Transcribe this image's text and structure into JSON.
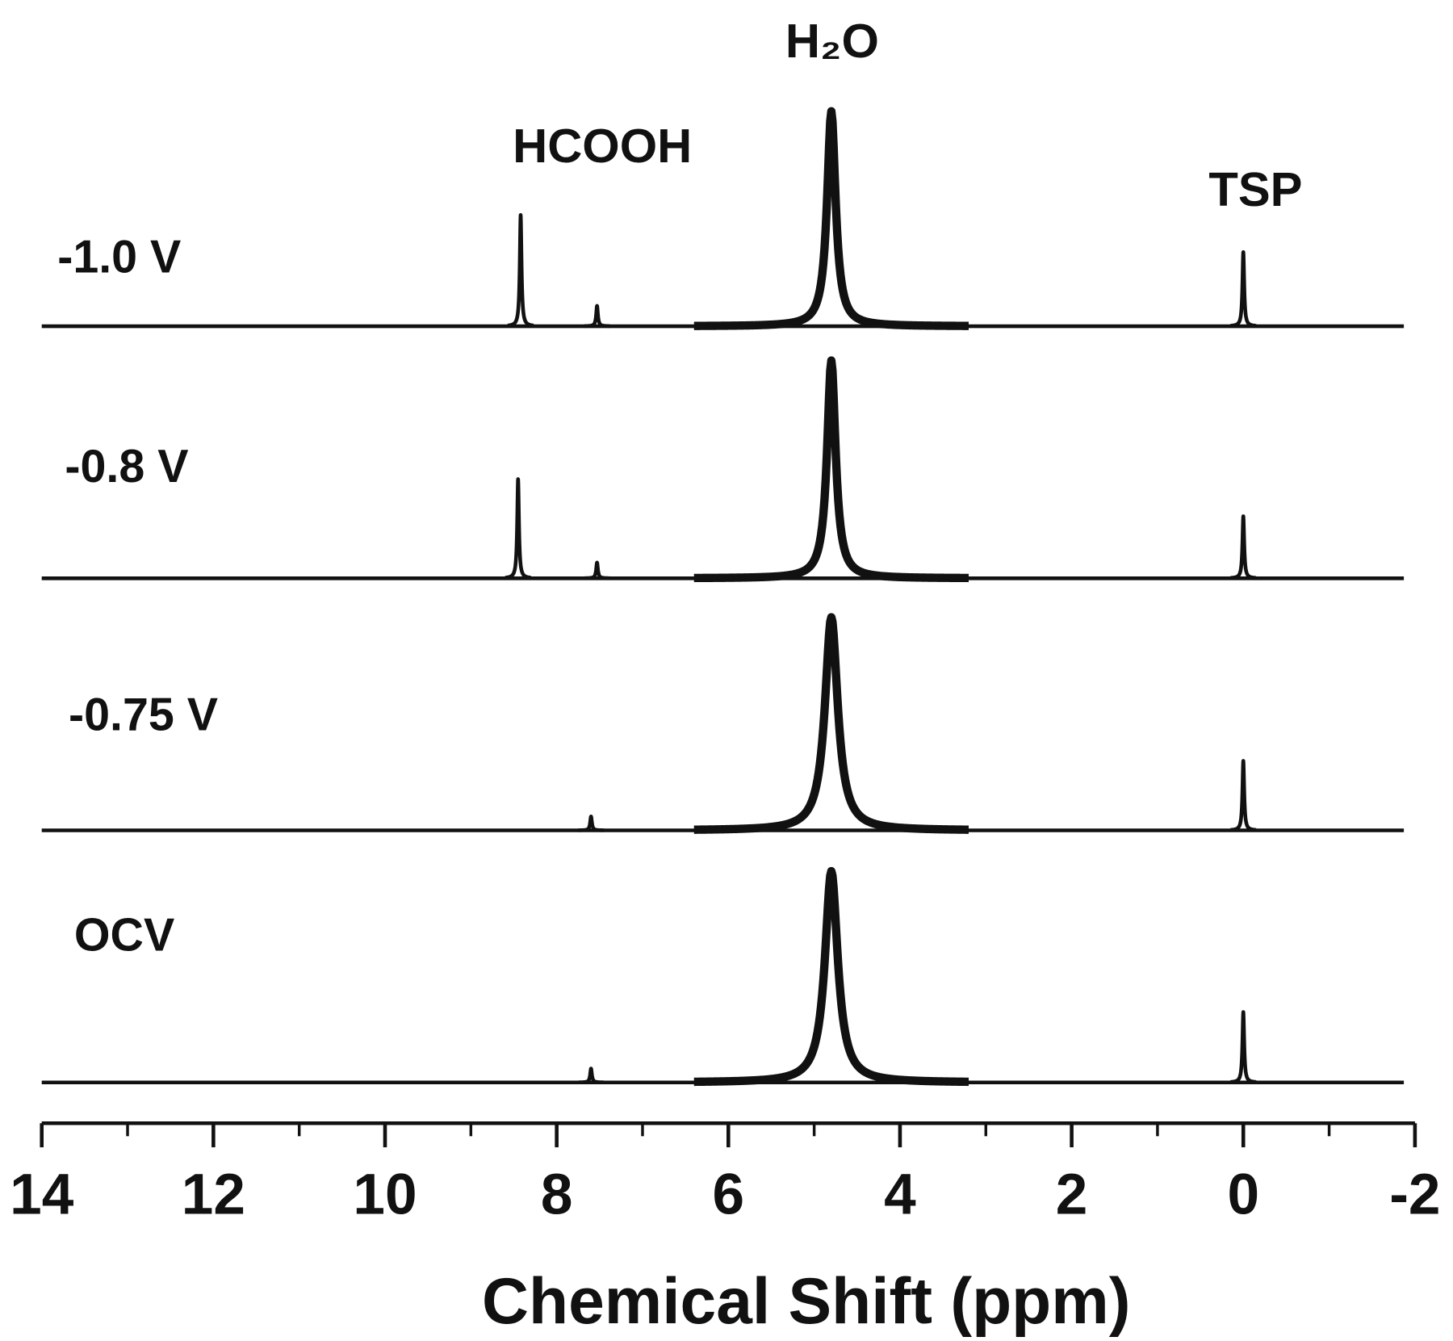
{
  "chart_data": {
    "type": "stacked-spectra",
    "xlabel": "Chemical Shift (ppm)",
    "xlim": [
      14,
      -2
    ],
    "xticks": [
      14,
      12,
      10,
      8,
      6,
      4,
      2,
      0,
      -2
    ],
    "xminor_ticks": [
      13,
      11,
      9,
      7,
      5,
      3,
      1,
      -1
    ],
    "color": "#111111",
    "annotations": [
      {
        "text": "HCOOH"
      },
      {
        "text": "H₂O"
      },
      {
        "text": "TSP"
      }
    ],
    "series": [
      {
        "name": "-1.0 V",
        "peaks": {
          "x": [
            8.42,
            7.53,
            4.8,
            0
          ],
          "height": [
            120,
            22,
            232,
            80
          ]
        }
      },
      {
        "name": "-0.8 V",
        "peaks": {
          "x": [
            8.45,
            7.53,
            4.8,
            0
          ],
          "height": [
            107,
            17,
            235,
            67
          ]
        }
      },
      {
        "name": "-0.75 V",
        "peaks": {
          "x": [
            7.6,
            4.8,
            0
          ],
          "height": [
            15,
            230,
            75
          ]
        }
      },
      {
        "name": "OCV",
        "peaks": {
          "x": [
            7.6,
            4.8,
            0
          ],
          "height": [
            15,
            228,
            76
          ]
        }
      }
    ]
  }
}
